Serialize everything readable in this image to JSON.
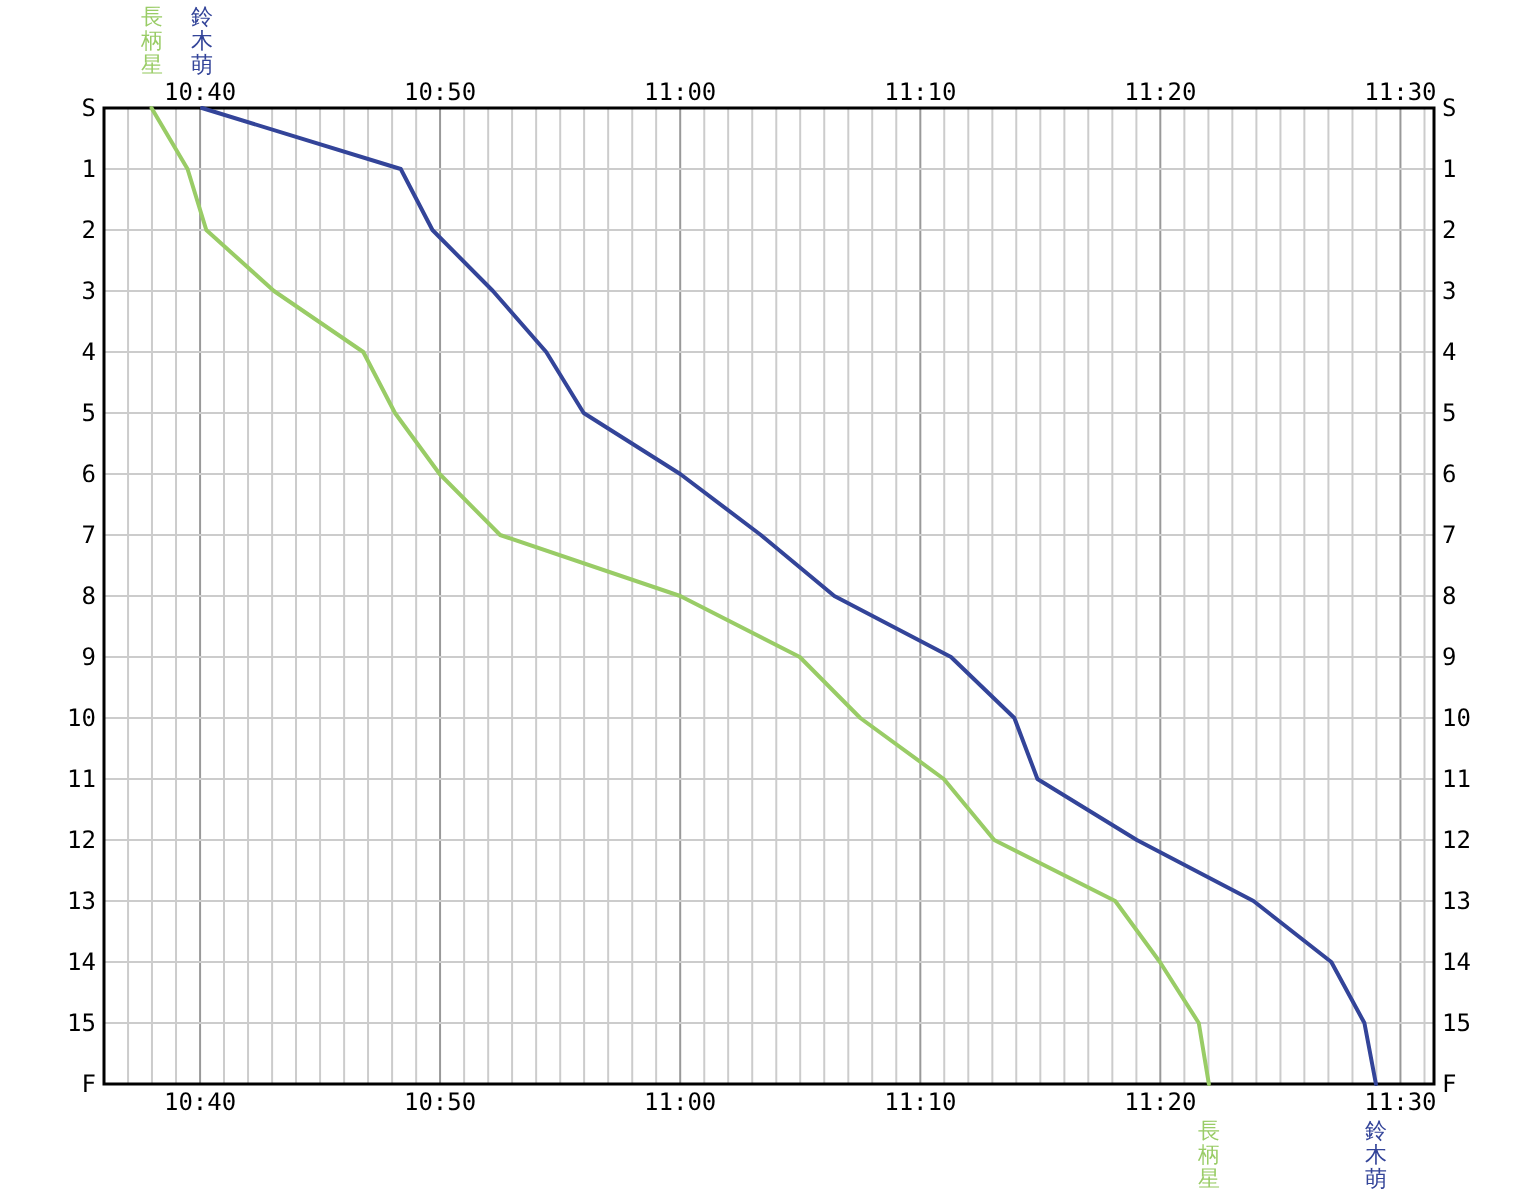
{
  "chart_data": {
    "type": "line",
    "series": [
      {
        "name": "長柄星",
        "color": "#99cc66",
        "x": [
          10.633,
          10.658,
          10.671,
          10.718,
          10.78,
          10.802,
          10.833,
          10.875,
          11.0,
          11.083,
          11.125,
          11.183,
          11.218,
          11.302,
          11.333,
          11.36,
          11.367
        ],
        "values": [
          0,
          1,
          2,
          3,
          4,
          5,
          6,
          7,
          8,
          9,
          10,
          11,
          12,
          13,
          14,
          15,
          16
        ]
      },
      {
        "name": "鈴木萌",
        "color": "#334499",
        "x": [
          10.668,
          10.806,
          10.828,
          10.87,
          10.907,
          10.933,
          11.0,
          11.056,
          11.107,
          11.188,
          11.232,
          11.248,
          11.317,
          11.398,
          11.452,
          11.475,
          11.483
        ],
        "values": [
          0,
          1,
          2,
          3,
          4,
          5,
          6,
          7,
          8,
          9,
          10,
          11,
          12,
          13,
          14,
          15,
          16
        ]
      }
    ],
    "xlim": [
      10.6,
      11.5233
    ],
    "xticks": [
      {
        "value": 10.6167,
        "label": null
      },
      {
        "value": 10.6333,
        "label": null
      },
      {
        "value": 10.65,
        "label": null
      },
      {
        "value": 10.6667,
        "label": "10:40"
      },
      {
        "value": 10.6833,
        "label": null
      },
      {
        "value": 10.7,
        "label": null
      },
      {
        "value": 10.7167,
        "label": null
      },
      {
        "value": 10.7333,
        "label": null
      },
      {
        "value": 10.75,
        "label": null
      },
      {
        "value": 10.7667,
        "label": null
      },
      {
        "value": 10.7833,
        "label": null
      },
      {
        "value": 10.8,
        "label": null
      },
      {
        "value": 10.8167,
        "label": null
      },
      {
        "value": 10.8333,
        "label": "10:50"
      },
      {
        "value": 10.85,
        "label": null
      },
      {
        "value": 10.8667,
        "label": null
      },
      {
        "value": 10.8833,
        "label": null
      },
      {
        "value": 10.9,
        "label": null
      },
      {
        "value": 10.9167,
        "label": null
      },
      {
        "value": 10.9333,
        "label": null
      },
      {
        "value": 10.95,
        "label": null
      },
      {
        "value": 10.9667,
        "label": null
      },
      {
        "value": 10.9833,
        "label": null
      },
      {
        "value": 11,
        "label": "11:00"
      },
      {
        "value": 11.0167,
        "label": null
      },
      {
        "value": 11.0333,
        "label": null
      },
      {
        "value": 11.05,
        "label": null
      },
      {
        "value": 11.0667,
        "label": null
      },
      {
        "value": 11.0833,
        "label": null
      },
      {
        "value": 11.1,
        "label": null
      },
      {
        "value": 11.1167,
        "label": null
      },
      {
        "value": 11.1333,
        "label": null
      },
      {
        "value": 11.15,
        "label": null
      },
      {
        "value": 11.1667,
        "label": "11:10"
      },
      {
        "value": 11.1833,
        "label": null
      },
      {
        "value": 11.2,
        "label": null
      },
      {
        "value": 11.2167,
        "label": null
      },
      {
        "value": 11.2333,
        "label": null
      },
      {
        "value": 11.25,
        "label": null
      },
      {
        "value": 11.2667,
        "label": null
      },
      {
        "value": 11.2833,
        "label": null
      },
      {
        "value": 11.3,
        "label": null
      },
      {
        "value": 11.3167,
        "label": null
      },
      {
        "value": 11.3333,
        "label": "11:20"
      },
      {
        "value": 11.35,
        "label": null
      },
      {
        "value": 11.3667,
        "label": null
      },
      {
        "value": 11.3833,
        "label": null
      },
      {
        "value": 11.4,
        "label": null
      },
      {
        "value": 11.4167,
        "label": null
      },
      {
        "value": 11.4333,
        "label": null
      },
      {
        "value": 11.45,
        "label": null
      },
      {
        "value": 11.4667,
        "label": null
      },
      {
        "value": 11.4833,
        "label": null
      },
      {
        "value": 11.5,
        "label": "11:30"
      },
      {
        "value": 11.5167,
        "label": null
      }
    ],
    "x2lim": [
      10.6,
      11.5233
    ],
    "x2ticks": [
      {
        "value": 10.6667,
        "label": "10:40"
      },
      {
        "value": 10.8333,
        "label": "10:50"
      },
      {
        "value": 11,
        "label": "11:00"
      },
      {
        "value": 11.1667,
        "label": "11:10"
      },
      {
        "value": 11.3333,
        "label": "11:20"
      },
      {
        "value": 11.5,
        "label": "11:30"
      }
    ],
    "ylim": [
      16,
      0
    ],
    "yticks": [
      {
        "value": 0,
        "label": "S"
      },
      1,
      2,
      3,
      4,
      5,
      6,
      7,
      8,
      9,
      10,
      11,
      12,
      13,
      14,
      15,
      {
        "value": 16,
        "label": "F"
      }
    ],
    "y2lim": [
      16,
      0
    ],
    "y2ticks": [
      {
        "value": 0,
        "label": "S"
      },
      1,
      2,
      3,
      4,
      5,
      6,
      7,
      8,
      9,
      10,
      11,
      12,
      13,
      14,
      15,
      {
        "value": 16,
        "label": "F"
      }
    ],
    "grid": true
  }
}
